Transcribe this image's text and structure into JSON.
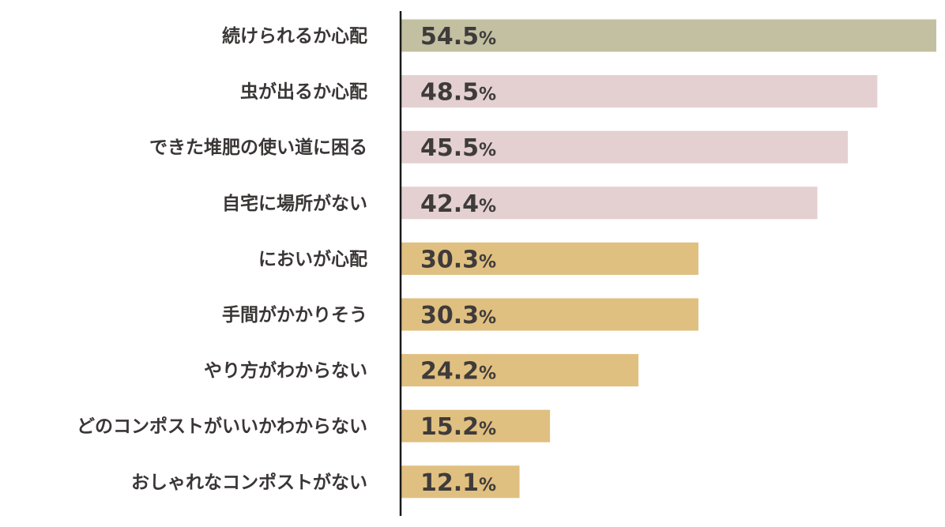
{
  "chart_data": {
    "type": "bar",
    "orientation": "horizontal",
    "categories": [
      "続けられるか心配",
      "虫が出るか心配",
      "できた堆肥の使い道に困る",
      "自宅に場所がない",
      "においが心配",
      "手間がかかりそう",
      "やり方がわからない",
      "どのコンポストがいいかわからない",
      "おしゃれなコンポストがない"
    ],
    "values": [
      54.5,
      48.5,
      45.5,
      42.4,
      30.3,
      30.3,
      24.2,
      15.2,
      12.1
    ],
    "value_labels": [
      "54.5",
      "48.5",
      "45.5",
      "42.4",
      "30.3",
      "30.3",
      "24.2",
      "15.2",
      "12.1"
    ],
    "unit": "%",
    "bar_colors": [
      "#c2c0a0",
      "#e4d0d1",
      "#e4d0d1",
      "#e4d0d1",
      "#e0c080",
      "#e0c080",
      "#e0c080",
      "#e0c080",
      "#e0c080"
    ],
    "axis_color": "#1a1a1a",
    "xlim": [
      0,
      54.5
    ],
    "grid": false,
    "legend": "none"
  }
}
